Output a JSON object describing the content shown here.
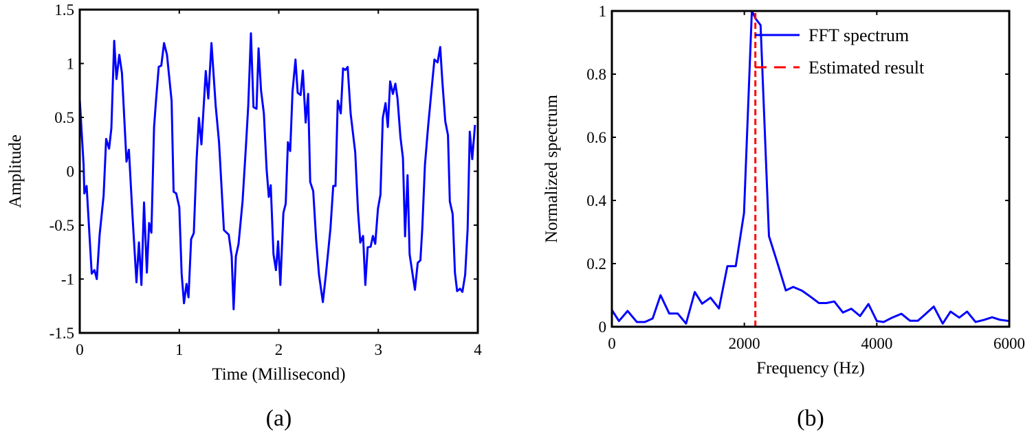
{
  "chart_data": [
    {
      "type": "line",
      "caption": "(a)",
      "xlabel": "Time (Millisecond)",
      "ylabel": "Amplitude",
      "xlim": [
        0,
        4
      ],
      "ylim": [
        -1.5,
        1.5
      ],
      "xticks": [
        0,
        1,
        2,
        3,
        4
      ],
      "yticks": [
        -1.5,
        -1,
        -0.5,
        0,
        0.5,
        1,
        1.5
      ],
      "xtick_labels": [
        "0",
        "1",
        "2",
        "3",
        "4"
      ],
      "ytick_labels": [
        "-1.5",
        "-1",
        "-0.5",
        "0",
        "0.5",
        "1",
        "1.5"
      ],
      "grid": false,
      "series": [
        {
          "color": "#0000ff",
          "x": [
            0,
            0.039,
            0.046,
            0.069,
            0.12,
            0.148,
            0.171,
            0.2,
            0.24,
            0.265,
            0.295,
            0.318,
            0.346,
            0.369,
            0.397,
            0.424,
            0.47,
            0.494,
            0.53,
            0.57,
            0.595,
            0.62,
            0.646,
            0.674,
            0.697,
            0.72,
            0.747,
            0.766,
            0.794,
            0.819,
            0.847,
            0.877,
            0.923,
            0.943,
            0.969,
            1.0,
            1.024,
            1.047,
            1.073,
            1.093,
            1.119,
            1.146,
            1.174,
            1.197,
            1.223,
            1.266,
            1.292,
            1.324,
            1.366,
            1.4,
            1.449,
            1.497,
            1.527,
            1.546,
            1.569,
            1.596,
            1.636,
            1.67,
            1.693,
            1.72,
            1.746,
            1.776,
            1.797,
            1.822,
            1.85,
            1.878,
            1.9,
            1.919,
            1.947,
            1.972,
            1.993,
            2.016,
            2.046,
            2.07,
            2.092,
            2.115,
            2.138,
            2.168,
            2.19,
            2.219,
            2.242,
            2.27,
            2.295,
            2.316,
            2.346,
            2.376,
            2.404,
            2.443,
            2.473,
            2.519,
            2.547,
            2.57,
            2.593,
            2.623,
            2.646,
            2.669,
            2.692,
            2.722,
            2.768,
            2.796,
            2.819,
            2.847,
            2.87,
            2.893,
            2.923,
            2.946,
            2.969,
            2.997,
            3.022,
            3.045,
            3.073,
            3.096,
            3.119,
            3.147,
            3.172,
            3.193,
            3.223,
            3.248,
            3.269,
            3.294,
            3.315,
            3.368,
            3.396,
            3.423,
            3.442,
            3.469,
            3.499,
            3.529,
            3.564,
            3.596,
            3.622,
            3.643,
            3.673,
            3.7,
            3.719,
            3.747,
            3.77,
            3.792,
            3.822,
            3.845,
            3.873,
            3.898,
            3.919,
            3.944,
            3.972
          ],
          "y": [
            0.665,
            0.06,
            -0.206,
            -0.136,
            -0.95,
            -0.917,
            -1.0,
            -0.59,
            -0.227,
            0.3,
            0.21,
            0.4,
            1.21,
            0.856,
            1.08,
            0.91,
            0.09,
            0.2,
            -0.41,
            -1.03,
            -0.66,
            -1.055,
            -0.29,
            -0.94,
            -0.48,
            -0.57,
            0.41,
            0.654,
            0.97,
            0.98,
            1.19,
            1.08,
            0.654,
            -0.19,
            -0.206,
            -0.333,
            -0.95,
            -1.225,
            -1.045,
            -1.17,
            -0.63,
            -0.573,
            0.1,
            0.495,
            0.25,
            0.93,
            0.675,
            1.19,
            0.61,
            0.27,
            -0.546,
            -0.588,
            -0.79,
            -1.28,
            -0.79,
            -0.673,
            -0.28,
            0.23,
            0.61,
            1.28,
            0.595,
            0.58,
            1.14,
            0.75,
            0.537,
            0.017,
            -0.238,
            -0.13,
            -0.77,
            -0.917,
            -0.65,
            -1.055,
            -0.386,
            -0.3,
            0.27,
            0.187,
            0.74,
            1.036,
            0.728,
            0.707,
            0.934,
            0.452,
            0.718,
            -0.1,
            -0.185,
            -0.64,
            -0.96,
            -1.214,
            -0.96,
            -0.535,
            -0.136,
            -0.136,
            0.654,
            0.537,
            0.955,
            0.94,
            0.968,
            0.537,
            0.176,
            -0.365,
            -0.662,
            -0.6,
            -1.055,
            -0.705,
            -0.7,
            -0.6,
            -0.673,
            -0.344,
            -0.217,
            0.495,
            0.633,
            0.41,
            0.834,
            0.718,
            0.813,
            0.675,
            0.314,
            0.123,
            -0.603,
            -0.036,
            -0.77,
            -1.1,
            -0.85,
            -0.826,
            -0.535,
            0.06,
            0.4,
            0.696,
            1.036,
            1.01,
            1.153,
            0.845,
            0.463,
            0.335,
            -0.28,
            -0.397,
            -0.938,
            -1.112,
            -1.09,
            -1.119,
            -0.96,
            -0.535,
            0.367,
            0.112,
            0.43
          ]
        }
      ]
    },
    {
      "type": "line",
      "caption": "(b)",
      "xlabel": "Frequency (Hz)",
      "ylabel": "Normalized spectrum",
      "xlim": [
        0,
        6000
      ],
      "ylim": [
        0,
        1
      ],
      "xticks": [
        0,
        2000,
        4000,
        6000
      ],
      "yticks": [
        0,
        0.2,
        0.4,
        0.6,
        0.8,
        1
      ],
      "xtick_labels": [
        "0",
        "2000",
        "4000",
        "6000"
      ],
      "ytick_labels": [
        "0",
        "0.2",
        "0.4",
        "0.6",
        "0.8",
        "1"
      ],
      "grid": false,
      "legend_position": "top-right",
      "series": [
        {
          "name": "FFT spectrum",
          "color": "#0000ff",
          "style": "solid",
          "x": [
            0,
            107,
            238,
            377,
            497,
            616,
            735,
            866,
            993,
            1120,
            1252,
            1363,
            1490,
            1617,
            1744,
            1871,
            1995,
            2114,
            2173,
            2245,
            2372,
            2503,
            2626,
            2738,
            2873,
            3000,
            3127,
            3238,
            3358,
            3489,
            3616,
            3747,
            3874,
            4001,
            4105,
            4232,
            4371,
            4502,
            4621,
            4740,
            4860,
            4995,
            5114,
            5245,
            5364,
            5491,
            5622,
            5742,
            5861,
            6000
          ],
          "y": [
            0.053,
            0.018,
            0.05,
            0.015,
            0.015,
            0.026,
            0.1,
            0.042,
            0.042,
            0.01,
            0.11,
            0.073,
            0.092,
            0.058,
            0.192,
            0.192,
            0.36,
            1.0,
            0.975,
            0.955,
            0.287,
            0.2,
            0.115,
            0.126,
            0.114,
            0.095,
            0.075,
            0.075,
            0.08,
            0.045,
            0.057,
            0.034,
            0.072,
            0.018,
            0.015,
            0.029,
            0.041,
            0.019,
            0.019,
            0.041,
            0.064,
            0.01,
            0.048,
            0.029,
            0.048,
            0.015,
            0.022,
            0.03,
            0.022,
            0.018
          ]
        },
        {
          "name": "Estimated result",
          "color": "#ff0000",
          "style": "dashed",
          "x": [
            2166,
            2166
          ],
          "y": [
            0,
            1
          ]
        }
      ]
    }
  ]
}
